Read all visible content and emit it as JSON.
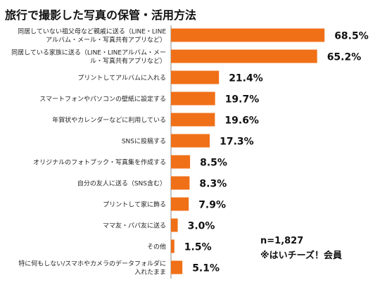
{
  "chart_data": {
    "type": "bar",
    "orientation": "horizontal",
    "title": "旅行で撮影した写真の保管・活用方法",
    "categories": [
      [
        "同居していない祖父母など親戚に送る（LINE・LINE",
        "アルバム・メール・写真共有アプリなど）"
      ],
      [
        "同居している家族に送る（LINE・LINEアルバム・メー",
        "ル・写真共有アプリなど）"
      ],
      [
        "プリントしてアルバムに入れる"
      ],
      [
        "スマートフォンやパソコンの壁紙に設定する"
      ],
      [
        "年賀状やカレンダーなどに利用している"
      ],
      [
        "SNSに投稿する"
      ],
      [
        "オリジナルのフォトブック・写真集を作成する"
      ],
      [
        "自分の友人に送る（SNS含む）"
      ],
      [
        "プリントして家に飾る"
      ],
      [
        "ママ友・パパ友に送る"
      ],
      [
        "その他"
      ],
      [
        "特に何もしない/スマホやカメラのデータフォルダに",
        "入れたまま"
      ]
    ],
    "values": [
      68.5,
      65.2,
      21.4,
      19.7,
      19.6,
      17.3,
      8.5,
      8.3,
      7.9,
      3.0,
      1.5,
      5.1
    ],
    "value_labels": [
      "68.5%",
      "65.2%",
      "21.4%",
      "19.7%",
      "19.6%",
      "17.3%",
      "8.5%",
      "8.3%",
      "7.9%",
      "3.0%",
      "1.5%",
      "5.1%"
    ],
    "unit": "%",
    "xlim": [
      0,
      80
    ],
    "grid": false,
    "legend": "none",
    "bar_color": "#f07018"
  },
  "notes": {
    "sample_size": "n=1,827",
    "source": "※はいチーズ！会員"
  }
}
